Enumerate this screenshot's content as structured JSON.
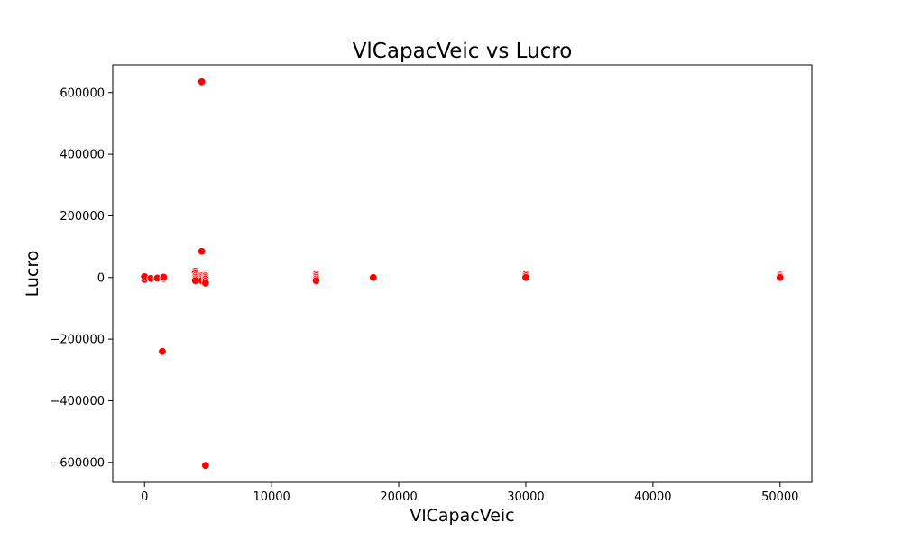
{
  "chart_data": {
    "type": "scatter",
    "title": "VlCapacVeic vs Lucro",
    "xlabel": "VlCapacVeic",
    "ylabel": "Lucro",
    "xlim": [
      -2500,
      52500
    ],
    "ylim": [
      -665000,
      690000
    ],
    "x_ticks": [
      0,
      10000,
      20000,
      30000,
      40000,
      50000
    ],
    "y_ticks": [
      -600000,
      -400000,
      -200000,
      0,
      200000,
      400000,
      600000
    ],
    "grid": false,
    "legend": "none",
    "marker_color": "#ff0000",
    "marker_edge_color": "#ffffff",
    "points": [
      {
        "x": 0,
        "y": 0
      },
      {
        "x": 0,
        "y": -3000
      },
      {
        "x": 0,
        "y": -6000
      },
      {
        "x": 0,
        "y": 3000
      },
      {
        "x": 500,
        "y": -3000
      },
      {
        "x": 1000,
        "y": 0
      },
      {
        "x": 1000,
        "y": -2000
      },
      {
        "x": 1400,
        "y": -240000
      },
      {
        "x": 1500,
        "y": -3000
      },
      {
        "x": 1500,
        "y": 1000
      },
      {
        "x": 4000,
        "y": 20000
      },
      {
        "x": 4000,
        "y": 15000
      },
      {
        "x": 4000,
        "y": 5000
      },
      {
        "x": 4000,
        "y": 0
      },
      {
        "x": 4000,
        "y": -5000
      },
      {
        "x": 4000,
        "y": -10000
      },
      {
        "x": 4500,
        "y": 635000
      },
      {
        "x": 4500,
        "y": 85000
      },
      {
        "x": 4500,
        "y": 5000
      },
      {
        "x": 4500,
        "y": 0
      },
      {
        "x": 4500,
        "y": -5000
      },
      {
        "x": 4500,
        "y": -10000
      },
      {
        "x": 4800,
        "y": -610000
      },
      {
        "x": 4800,
        "y": 5000
      },
      {
        "x": 4800,
        "y": 0
      },
      {
        "x": 4800,
        "y": -5000
      },
      {
        "x": 4800,
        "y": -12000
      },
      {
        "x": 4800,
        "y": -18000
      },
      {
        "x": 13500,
        "y": 10000
      },
      {
        "x": 13500,
        "y": 5000
      },
      {
        "x": 13500,
        "y": 0
      },
      {
        "x": 13500,
        "y": -5000
      },
      {
        "x": 13500,
        "y": -10000
      },
      {
        "x": 18000,
        "y": 0
      },
      {
        "x": 30000,
        "y": 10000
      },
      {
        "x": 30000,
        "y": 5000
      },
      {
        "x": 30000,
        "y": 0
      },
      {
        "x": 50000,
        "y": 8000
      },
      {
        "x": 50000,
        "y": 4000
      },
      {
        "x": 50000,
        "y": 0
      }
    ]
  }
}
